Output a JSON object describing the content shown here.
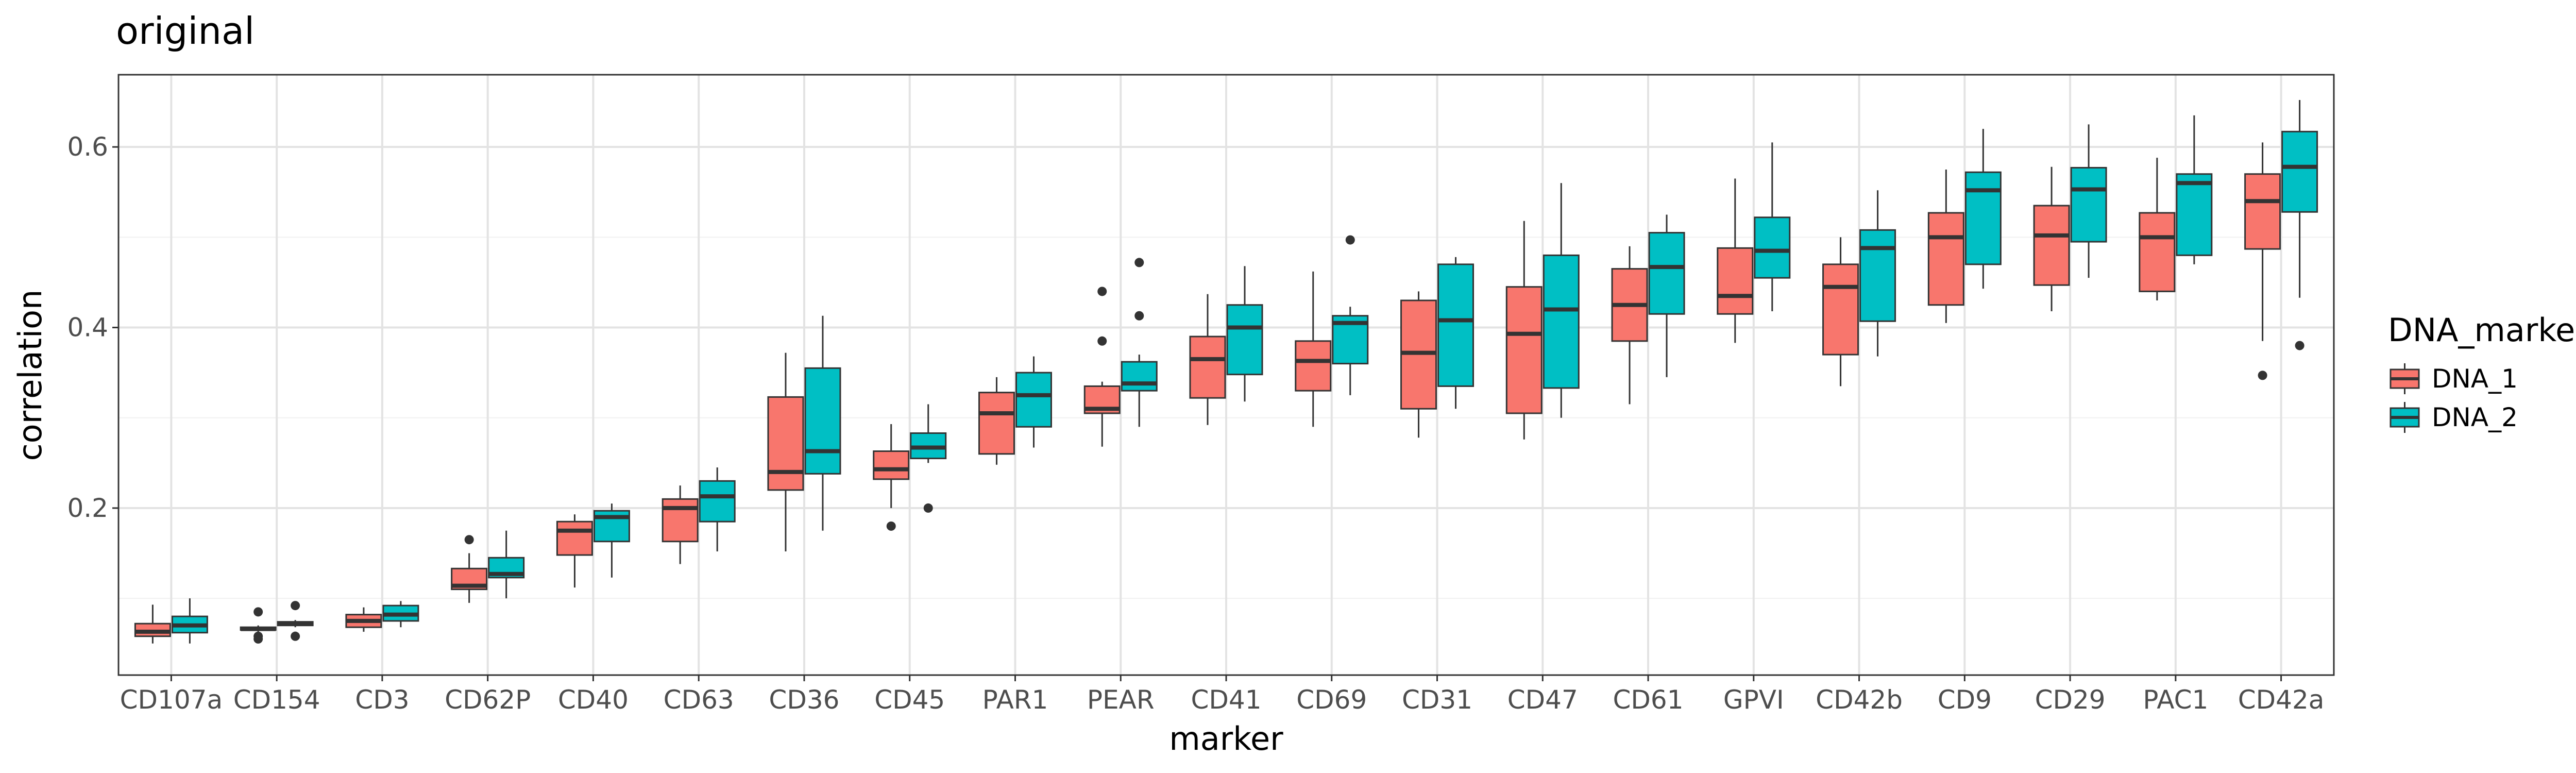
{
  "chart_data": {
    "type": "boxplot",
    "title": "original",
    "xlabel": "marker",
    "ylabel": "correlation",
    "ylim": [
      0.015,
      0.68
    ],
    "yticks": [
      0.2,
      0.4,
      0.6
    ],
    "ytick_labels": [
      "0.2",
      "0.4",
      "0.6"
    ],
    "grid": true,
    "legend": {
      "title": "DNA_marker",
      "position": "right"
    },
    "categories": [
      "CD107a",
      "CD154",
      "CD3",
      "CD62P",
      "CD40",
      "CD63",
      "CD36",
      "CD45",
      "PAR1",
      "PEAR",
      "CD41",
      "CD69",
      "CD31",
      "CD47",
      "CD61",
      "GPVI",
      "CD42b",
      "CD9",
      "CD29",
      "PAC1",
      "CD42a"
    ],
    "series": [
      {
        "name": "DNA_1",
        "color": "#F8766D",
        "boxes": [
          {
            "min": 0.05,
            "q1": 0.058,
            "median": 0.063,
            "q3": 0.072,
            "max": 0.093,
            "outliers": []
          },
          {
            "min": 0.063,
            "q1": 0.065,
            "median": 0.066,
            "q3": 0.068,
            "max": 0.07,
            "outliers": [
              0.055,
              0.058,
              0.085
            ]
          },
          {
            "min": 0.063,
            "q1": 0.068,
            "median": 0.075,
            "q3": 0.082,
            "max": 0.09,
            "outliers": []
          },
          {
            "min": 0.095,
            "q1": 0.11,
            "median": 0.114,
            "q3": 0.133,
            "max": 0.15,
            "outliers": [
              0.165
            ]
          },
          {
            "min": 0.112,
            "q1": 0.148,
            "median": 0.175,
            "q3": 0.185,
            "max": 0.193,
            "outliers": []
          },
          {
            "min": 0.138,
            "q1": 0.163,
            "median": 0.2,
            "q3": 0.21,
            "max": 0.225,
            "outliers": []
          },
          {
            "min": 0.152,
            "q1": 0.22,
            "median": 0.24,
            "q3": 0.323,
            "max": 0.372,
            "outliers": []
          },
          {
            "min": 0.2,
            "q1": 0.232,
            "median": 0.243,
            "q3": 0.263,
            "max": 0.293,
            "outliers": [
              0.18
            ]
          },
          {
            "min": 0.248,
            "q1": 0.26,
            "median": 0.305,
            "q3": 0.328,
            "max": 0.345,
            "outliers": []
          },
          {
            "min": 0.268,
            "q1": 0.305,
            "median": 0.31,
            "q3": 0.335,
            "max": 0.34,
            "outliers": [
              0.385,
              0.44
            ]
          },
          {
            "min": 0.292,
            "q1": 0.322,
            "median": 0.365,
            "q3": 0.39,
            "max": 0.437,
            "outliers": []
          },
          {
            "min": 0.29,
            "q1": 0.33,
            "median": 0.363,
            "q3": 0.385,
            "max": 0.462,
            "outliers": []
          },
          {
            "min": 0.278,
            "q1": 0.31,
            "median": 0.372,
            "q3": 0.43,
            "max": 0.44,
            "outliers": []
          },
          {
            "min": 0.276,
            "q1": 0.305,
            "median": 0.393,
            "q3": 0.445,
            "max": 0.518,
            "outliers": []
          },
          {
            "min": 0.315,
            "q1": 0.385,
            "median": 0.425,
            "q3": 0.465,
            "max": 0.49,
            "outliers": []
          },
          {
            "min": 0.383,
            "q1": 0.415,
            "median": 0.435,
            "q3": 0.488,
            "max": 0.565,
            "outliers": []
          },
          {
            "min": 0.335,
            "q1": 0.37,
            "median": 0.445,
            "q3": 0.47,
            "max": 0.5,
            "outliers": []
          },
          {
            "min": 0.405,
            "q1": 0.425,
            "median": 0.5,
            "q3": 0.527,
            "max": 0.575,
            "outliers": []
          },
          {
            "min": 0.418,
            "q1": 0.447,
            "median": 0.502,
            "q3": 0.535,
            "max": 0.578,
            "outliers": []
          },
          {
            "min": 0.43,
            "q1": 0.44,
            "median": 0.5,
            "q3": 0.527,
            "max": 0.588,
            "outliers": []
          },
          {
            "min": 0.385,
            "q1": 0.487,
            "median": 0.54,
            "q3": 0.57,
            "max": 0.605,
            "outliers": [
              0.347
            ]
          }
        ]
      },
      {
        "name": "DNA_2",
        "color": "#00BFC4",
        "boxes": [
          {
            "min": 0.05,
            "q1": 0.062,
            "median": 0.07,
            "q3": 0.08,
            "max": 0.1,
            "outliers": []
          },
          {
            "min": 0.068,
            "q1": 0.07,
            "median": 0.072,
            "q3": 0.074,
            "max": 0.076,
            "outliers": [
              0.058,
              0.092
            ]
          },
          {
            "min": 0.068,
            "q1": 0.075,
            "median": 0.082,
            "q3": 0.092,
            "max": 0.097,
            "outliers": []
          },
          {
            "min": 0.1,
            "q1": 0.123,
            "median": 0.127,
            "q3": 0.145,
            "max": 0.175,
            "outliers": []
          },
          {
            "min": 0.123,
            "q1": 0.163,
            "median": 0.19,
            "q3": 0.197,
            "max": 0.205,
            "outliers": []
          },
          {
            "min": 0.152,
            "q1": 0.185,
            "median": 0.213,
            "q3": 0.23,
            "max": 0.245,
            "outliers": []
          },
          {
            "min": 0.175,
            "q1": 0.238,
            "median": 0.263,
            "q3": 0.355,
            "max": 0.413,
            "outliers": []
          },
          {
            "min": 0.25,
            "q1": 0.255,
            "median": 0.267,
            "q3": 0.283,
            "max": 0.315,
            "outliers": [
              0.2
            ]
          },
          {
            "min": 0.267,
            "q1": 0.29,
            "median": 0.325,
            "q3": 0.35,
            "max": 0.368,
            "outliers": []
          },
          {
            "min": 0.29,
            "q1": 0.33,
            "median": 0.338,
            "q3": 0.362,
            "max": 0.37,
            "outliers": [
              0.413,
              0.472
            ]
          },
          {
            "min": 0.318,
            "q1": 0.348,
            "median": 0.4,
            "q3": 0.425,
            "max": 0.468,
            "outliers": []
          },
          {
            "min": 0.325,
            "q1": 0.36,
            "median": 0.405,
            "q3": 0.413,
            "max": 0.423,
            "outliers": [
              0.497
            ]
          },
          {
            "min": 0.31,
            "q1": 0.335,
            "median": 0.408,
            "q3": 0.47,
            "max": 0.478,
            "outliers": []
          },
          {
            "min": 0.3,
            "q1": 0.333,
            "median": 0.42,
            "q3": 0.48,
            "max": 0.56,
            "outliers": []
          },
          {
            "min": 0.345,
            "q1": 0.415,
            "median": 0.467,
            "q3": 0.505,
            "max": 0.525,
            "outliers": []
          },
          {
            "min": 0.418,
            "q1": 0.455,
            "median": 0.485,
            "q3": 0.522,
            "max": 0.605,
            "outliers": []
          },
          {
            "min": 0.368,
            "q1": 0.407,
            "median": 0.488,
            "q3": 0.508,
            "max": 0.552,
            "outliers": []
          },
          {
            "min": 0.443,
            "q1": 0.47,
            "median": 0.552,
            "q3": 0.572,
            "max": 0.62,
            "outliers": []
          },
          {
            "min": 0.455,
            "q1": 0.495,
            "median": 0.553,
            "q3": 0.577,
            "max": 0.625,
            "outliers": []
          },
          {
            "min": 0.47,
            "q1": 0.48,
            "median": 0.56,
            "q3": 0.57,
            "max": 0.635,
            "outliers": []
          },
          {
            "min": 0.433,
            "q1": 0.528,
            "median": 0.578,
            "q3": 0.617,
            "max": 0.652,
            "outliers": [
              0.38
            ]
          }
        ]
      }
    ]
  }
}
